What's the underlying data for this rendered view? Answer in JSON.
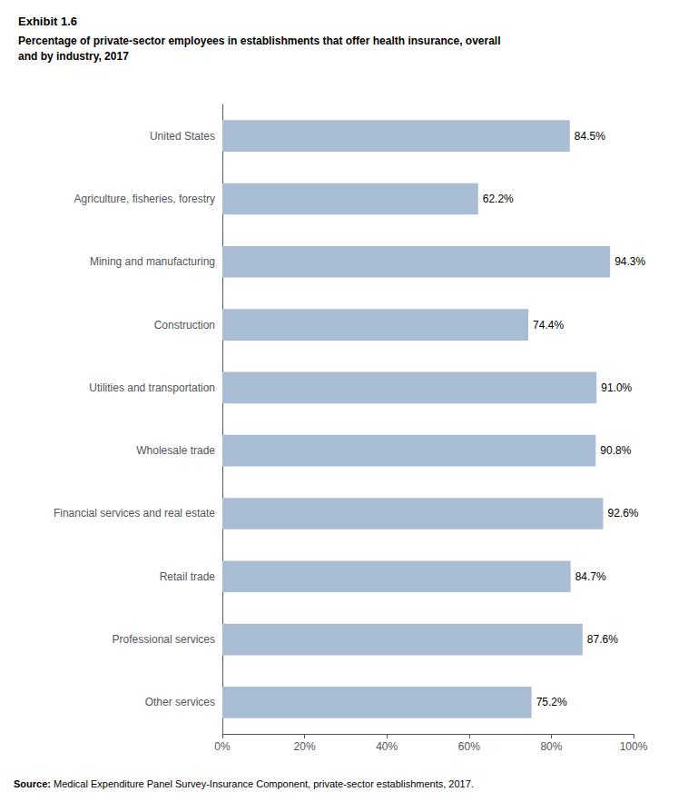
{
  "chart_data": {
    "type": "bar",
    "orientation": "horizontal",
    "title": "Exhibit 1.6",
    "subtitle": "Percentage of private-sector employees in establishments that offer health insurance, overall\nand by industry, 2017",
    "annotations": [
      "Source: Medical Expenditure Panel Survey-Insurance Component, private-sector establishments, 2017."
    ],
    "categories": [
      "United States",
      "Agriculture, fisheries, forestry",
      "Mining and manufacturing",
      "Construction",
      "Utilities and transportation",
      "Wholesale trade",
      "Financial services and real estate",
      "Retail trade",
      "Professional services",
      "Other services"
    ],
    "values": [
      84.5,
      62.2,
      94.3,
      74.4,
      91.0,
      90.8,
      92.6,
      84.7,
      87.6,
      75.2
    ],
    "value_labels": [
      "84.5%",
      "62.2%",
      "94.3%",
      "74.4%",
      "91.0%",
      "90.8%",
      "92.6%",
      "84.7%",
      "87.6%",
      "75.2%"
    ],
    "data_labels": true,
    "color": "#a8bcd4",
    "xlim": [
      0,
      100
    ],
    "xticks": [
      {
        "value": 0,
        "label": "0%"
      },
      {
        "value": 20,
        "label": "20%"
      },
      {
        "value": 40,
        "label": "40%"
      },
      {
        "value": 60,
        "label": "60%"
      },
      {
        "value": 80,
        "label": "80%"
      },
      {
        "value": 100,
        "label": "100%"
      }
    ],
    "grid": false
  }
}
